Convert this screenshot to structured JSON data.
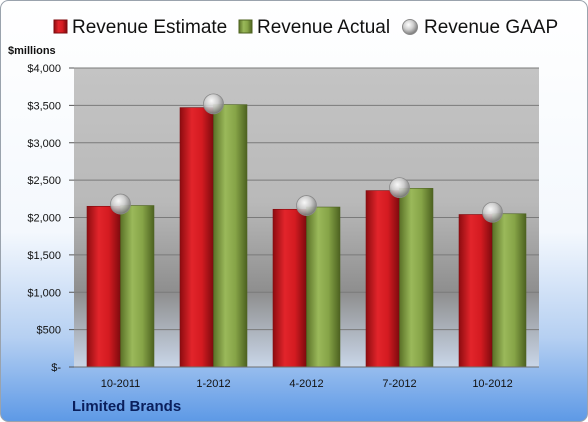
{
  "chart_data": {
    "type": "bar",
    "categories": [
      "10-2011",
      "1-2012",
      "4-2012",
      "7-2012",
      "10-2012"
    ],
    "series": [
      {
        "name": "Revenue Estimate",
        "marker": "bar",
        "color": "#c8151b",
        "values": [
          2150,
          3470,
          2110,
          2360,
          2040
        ]
      },
      {
        "name": "Revenue Actual",
        "marker": "bar",
        "color": "#7e9b3a",
        "values": [
          2160,
          3510,
          2140,
          2390,
          2050
        ]
      },
      {
        "name": "Revenue GAAP",
        "marker": "circle",
        "color": "#b7b7b7",
        "values": [
          2180,
          3520,
          2160,
          2400,
          2070
        ]
      }
    ],
    "ylabel": "$millions",
    "ylim": [
      0,
      4000
    ],
    "yticks": [
      0,
      500,
      1000,
      1500,
      2000,
      2500,
      3000,
      3500,
      4000
    ],
    "ytick_labels": [
      "$-",
      "$500",
      "$1,000",
      "$1,500",
      "$2,000",
      "$2,500",
      "$3,000",
      "$3,500",
      "$4,000"
    ],
    "grid": true,
    "legend_position": "top",
    "company": "Limited Brands"
  }
}
